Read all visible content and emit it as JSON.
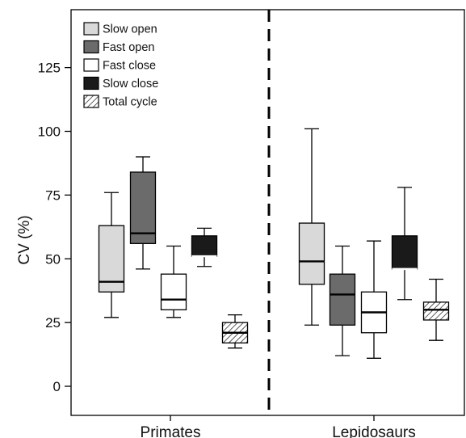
{
  "chart_data": {
    "type": "box",
    "title": "",
    "xlabel": "",
    "ylabel": "CV (%)",
    "ylim": [
      -10,
      145
    ],
    "yticks": [
      0,
      25,
      50,
      75,
      100,
      125
    ],
    "categories": [
      "Primates",
      "Lepidosaurs"
    ],
    "divider": "dashed vertical line between groups",
    "legend_position": "top-left",
    "series": [
      {
        "name": "Slow open",
        "fill": "#d9d9d9",
        "median_color": "#000000",
        "boxes": [
          {
            "category": "Primates",
            "min": 27,
            "q1": 37,
            "median": 41,
            "q3": 63,
            "max": 76
          },
          {
            "category": "Lepidosaurs",
            "min": 24,
            "q1": 40,
            "median": 49,
            "q3": 64,
            "max": 101
          }
        ]
      },
      {
        "name": "Fast open",
        "fill": "#6b6b6b",
        "median_color": "#000000",
        "boxes": [
          {
            "category": "Primates",
            "min": 46,
            "q1": 56,
            "median": 60,
            "q3": 84,
            "max": 90
          },
          {
            "category": "Lepidosaurs",
            "min": 12,
            "q1": 24,
            "median": 36,
            "q3": 44,
            "max": 55
          }
        ]
      },
      {
        "name": "Fast close",
        "fill": "#ffffff",
        "median_color": "#000000",
        "boxes": [
          {
            "category": "Primates",
            "min": 27,
            "q1": 30,
            "median": 34,
            "q3": 44,
            "max": 55
          },
          {
            "category": "Lepidosaurs",
            "min": 11,
            "q1": 21,
            "median": 29,
            "q3": 37,
            "max": 57
          }
        ]
      },
      {
        "name": "Slow close",
        "fill": "#1a1a1a",
        "median_color": "#ffffff",
        "boxes": [
          {
            "category": "Primates",
            "min": 47,
            "q1": 51,
            "median": 51,
            "q3": 59,
            "max": 62
          },
          {
            "category": "Lepidosaurs",
            "min": 34,
            "q1": 46,
            "median": 46,
            "q3": 59,
            "max": 78
          }
        ]
      },
      {
        "name": "Total cycle",
        "fill": "hatch",
        "median_color": "#000000",
        "boxes": [
          {
            "category": "Primates",
            "min": 15,
            "q1": 17,
            "median": 21,
            "q3": 25,
            "max": 28
          },
          {
            "category": "Lepidosaurs",
            "min": 18,
            "q1": 26,
            "median": 30,
            "q3": 33,
            "max": 42
          }
        ]
      }
    ]
  }
}
